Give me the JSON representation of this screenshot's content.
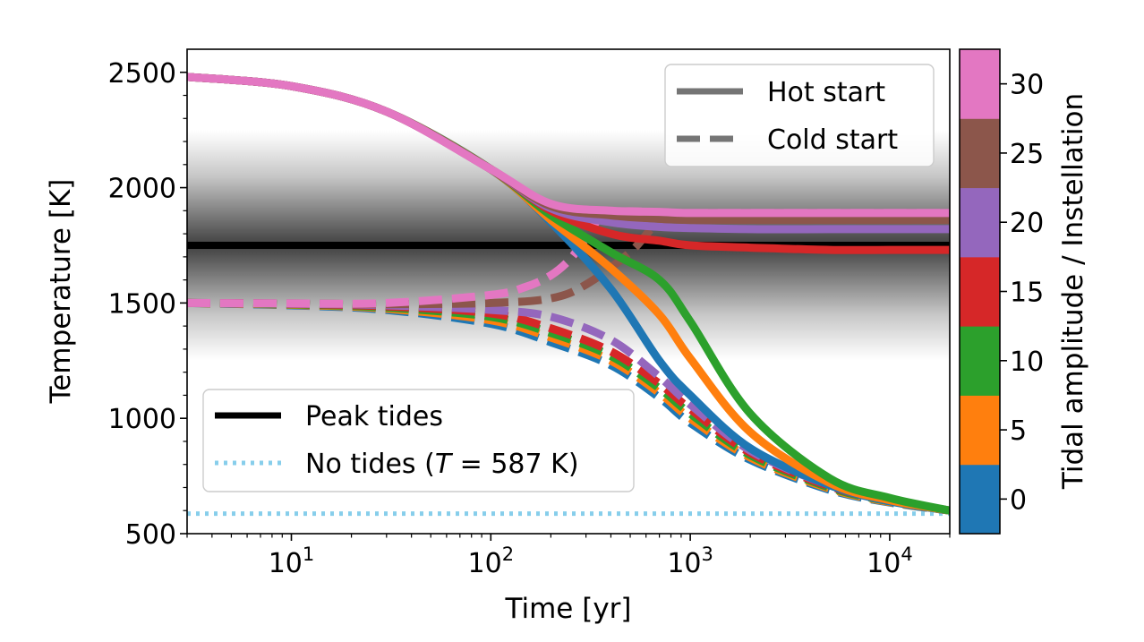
{
  "chart_data": {
    "type": "line",
    "title": "",
    "xlabel": "Time [yr]",
    "ylabel": "Temperature [K]",
    "xscale": "log",
    "xlim": [
      3,
      20000
    ],
    "ylim": [
      500,
      2600
    ],
    "x_ticks": [
      {
        "value": 10,
        "base": "10",
        "exp": "1"
      },
      {
        "value": 100,
        "base": "10",
        "exp": "2"
      },
      {
        "value": 1000,
        "base": "10",
        "exp": "3"
      },
      {
        "value": 10000,
        "base": "10",
        "exp": "4"
      }
    ],
    "y_ticks": [
      "500",
      "1000",
      "1500",
      "2000",
      "2500"
    ],
    "colorbar": {
      "label": "Tidal amplitude / Instellation",
      "levels": [
        {
          "label": "0",
          "color": "#1f77b4"
        },
        {
          "label": "5",
          "color": "#ff7f0e"
        },
        {
          "label": "10",
          "color": "#2ca02c"
        },
        {
          "label": "15",
          "color": "#d62728"
        },
        {
          "label": "20",
          "color": "#9467bd"
        },
        {
          "label": "25",
          "color": "#8c564b"
        },
        {
          "label": "30",
          "color": "#e377c2"
        }
      ]
    },
    "legend_top": {
      "placement": "top-right",
      "entries": [
        {
          "label": "Hot start",
          "style": "solid"
        },
        {
          "label": "Cold start",
          "style": "dashed"
        }
      ]
    },
    "legend_bottom": {
      "placement": "lower-left",
      "entries": [
        {
          "label": "Peak tides",
          "style": "solid-black"
        },
        {
          "label_pre": "No tides (",
          "label_var": "T",
          "label_post": " = 587 K)",
          "style": "dotted-skyblue"
        }
      ]
    },
    "reference_lines": {
      "peak_tides": 1750,
      "no_tides": 587
    },
    "shaded_band": {
      "center": 1750,
      "range": [
        1250,
        2250
      ]
    },
    "series": [
      {
        "color": "#1f77b4",
        "style": "solid",
        "x": [
          3,
          10,
          30,
          100,
          200,
          400,
          700,
          1000,
          2000,
          5000,
          10000,
          20000
        ],
        "y": [
          2480,
          2440,
          2330,
          2080,
          1850,
          1560,
          1250,
          1100,
          870,
          710,
          640,
          600
        ]
      },
      {
        "color": "#ff7f0e",
        "style": "solid",
        "x": [
          3,
          10,
          30,
          100,
          200,
          400,
          700,
          1000,
          2000,
          5000,
          10000,
          20000
        ],
        "y": [
          2480,
          2440,
          2330,
          2080,
          1860,
          1650,
          1450,
          1260,
          940,
          720,
          645,
          600
        ]
      },
      {
        "color": "#2ca02c",
        "style": "solid",
        "x": [
          3,
          10,
          30,
          100,
          200,
          400,
          700,
          1000,
          2000,
          5000,
          10000,
          20000
        ],
        "y": [
          2480,
          2440,
          2330,
          2080,
          1880,
          1720,
          1600,
          1420,
          1020,
          740,
          655,
          600
        ]
      },
      {
        "color": "#d62728",
        "style": "solid",
        "x": [
          3,
          10,
          30,
          100,
          200,
          400,
          700,
          1000,
          2000,
          5000,
          10000,
          20000
        ],
        "y": [
          2480,
          2440,
          2330,
          2080,
          1900,
          1800,
          1770,
          1750,
          1740,
          1730,
          1730,
          1730
        ]
      },
      {
        "color": "#9467bd",
        "style": "solid",
        "x": [
          3,
          10,
          30,
          100,
          200,
          400,
          700,
          1000,
          2000,
          5000,
          10000,
          20000
        ],
        "y": [
          2480,
          2440,
          2330,
          2080,
          1910,
          1850,
          1830,
          1825,
          1820,
          1820,
          1820,
          1820
        ]
      },
      {
        "color": "#8c564b",
        "style": "solid",
        "x": [
          3,
          10,
          30,
          100,
          200,
          400,
          700,
          1000,
          2000,
          5000,
          10000,
          20000
        ],
        "y": [
          2480,
          2440,
          2330,
          2080,
          1920,
          1880,
          1865,
          1860,
          1860,
          1860,
          1860,
          1860
        ]
      },
      {
        "color": "#e377c2",
        "style": "solid",
        "x": [
          3,
          10,
          30,
          100,
          200,
          400,
          700,
          1000,
          2000,
          5000,
          10000,
          20000
        ],
        "y": [
          2480,
          2440,
          2330,
          2080,
          1930,
          1900,
          1895,
          1890,
          1890,
          1890,
          1890,
          1890
        ]
      },
      {
        "color": "#1f77b4",
        "style": "dashed",
        "x": [
          3,
          10,
          30,
          100,
          200,
          400,
          700,
          1000,
          2000,
          5000,
          10000,
          20000
        ],
        "y": [
          1500,
          1490,
          1470,
          1410,
          1330,
          1230,
          1090,
          980,
          820,
          690,
          635,
          600
        ]
      },
      {
        "color": "#ff7f0e",
        "style": "dashed",
        "x": [
          3,
          10,
          30,
          100,
          200,
          400,
          700,
          1000,
          2000,
          5000,
          10000,
          20000
        ],
        "y": [
          1500,
          1492,
          1475,
          1425,
          1350,
          1250,
          1110,
          1000,
          830,
          695,
          637,
          600
        ]
      },
      {
        "color": "#2ca02c",
        "style": "dashed",
        "x": [
          3,
          10,
          30,
          100,
          200,
          400,
          700,
          1000,
          2000,
          5000,
          10000,
          20000
        ],
        "y": [
          1500,
          1494,
          1480,
          1440,
          1370,
          1270,
          1130,
          1020,
          840,
          700,
          640,
          600
        ]
      },
      {
        "color": "#d62728",
        "style": "dashed",
        "x": [
          3,
          10,
          30,
          100,
          200,
          400,
          700,
          1000,
          2000,
          5000,
          10000,
          20000
        ],
        "y": [
          1500,
          1496,
          1485,
          1455,
          1390,
          1290,
          1150,
          1040,
          850,
          705,
          642,
          600
        ]
      },
      {
        "color": "#9467bd",
        "style": "dashed",
        "x": [
          3,
          10,
          30,
          100,
          200,
          400,
          700,
          1000,
          2000,
          5000,
          10000,
          20000
        ],
        "y": [
          1500,
          1497,
          1490,
          1470,
          1440,
          1340,
          1180,
          1060,
          860,
          710,
          645,
          600
        ]
      },
      {
        "color": "#8c564b",
        "style": "dashed",
        "x": [
          3,
          10,
          30,
          100,
          200,
          300,
          500,
          700,
          1000,
          2000,
          10000,
          20000
        ],
        "y": [
          1500,
          1498,
          1495,
          1500,
          1520,
          1580,
          1720,
          1850,
          1860,
          1860,
          1860,
          1860
        ]
      },
      {
        "color": "#e377c2",
        "style": "dashed",
        "x": [
          3,
          10,
          30,
          100,
          150,
          200,
          250,
          300,
          400,
          1000,
          10000,
          20000
        ],
        "y": [
          1500,
          1498,
          1500,
          1535,
          1570,
          1620,
          1690,
          1780,
          1890,
          1890,
          1890,
          1890
        ]
      }
    ]
  }
}
